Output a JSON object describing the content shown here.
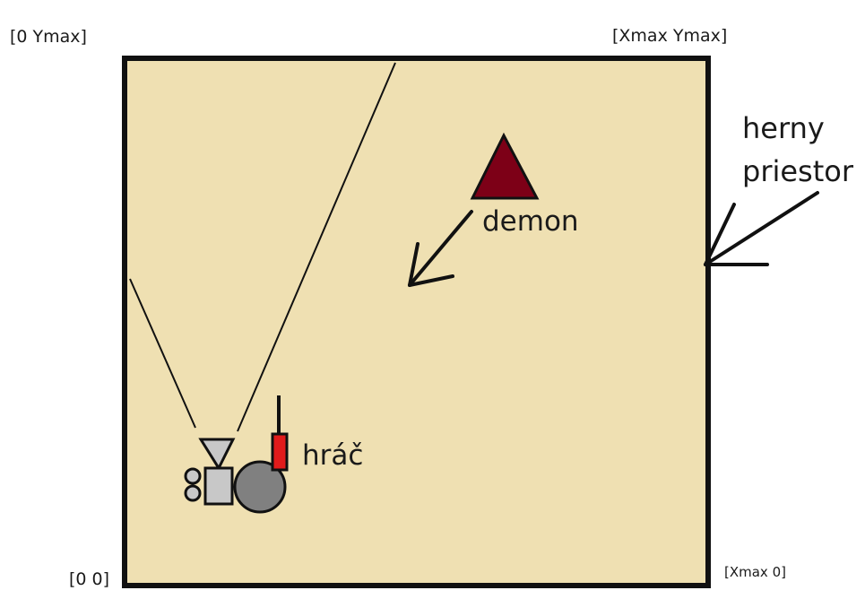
{
  "corners": {
    "top_left": "[0 Ymax]",
    "top_right": "[Xmax Ymax]",
    "bottom_left": "[0 0]",
    "bottom_right": "[Xmax 0]"
  },
  "labels": {
    "demon": "demon",
    "player": "hráč",
    "play_area_line1": "herny",
    "play_area_line2": "priestor"
  },
  "colors": {
    "play_area_fill": "#efe0b2",
    "border": "#111111",
    "demon_fill": "#7d0017",
    "player_body": "#808080",
    "player_weapon": "#e11b1b",
    "player_camera": "#c8c8c8"
  }
}
